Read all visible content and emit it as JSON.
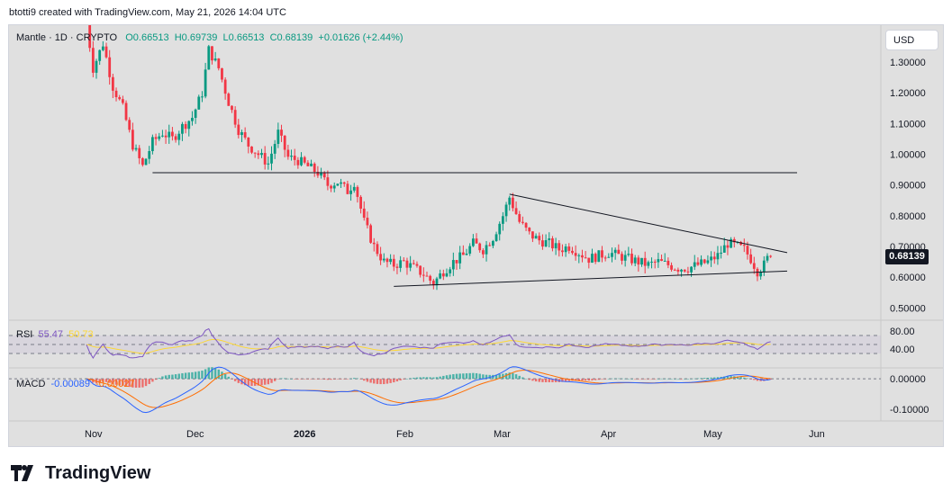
{
  "credit": "btotti9 created with TradingView.com, May 21, 2026 14:04 UTC",
  "legend": {
    "symbol": "Mantle · 1D · CRYPTO",
    "open": "O0.66513",
    "high": "H0.69739",
    "low": "L0.66513",
    "close": "C0.68139",
    "change": "+0.01626 (+2.44%)"
  },
  "currency": "USD",
  "last_price": "0.68139",
  "rsi": {
    "label": "RSI",
    "value": "55.47",
    "ma_value": "50.73"
  },
  "macd": {
    "label": "MACD",
    "macd_value": "-0.00089",
    "signal_value": "-0.00027"
  },
  "footer": {
    "brand": "TradingView"
  },
  "colors": {
    "up": "#089981",
    "down": "#f23645",
    "rsi_line": "#7e57c2",
    "rsi_ma": "#fdd835",
    "macd_line": "#2962ff",
    "signal_line": "#ff6d00",
    "hist_up": "#26a69a",
    "hist_down": "#ef5350",
    "pane_bg": "#e0e0e0"
  },
  "chart_data": {
    "type": "candlestick",
    "price_axis": {
      "ticks": [
        "1.30000",
        "1.20000",
        "1.10000",
        "1.00000",
        "0.90000",
        "0.80000",
        "0.70000",
        "0.60000",
        "0.50000"
      ],
      "tick_values": [
        1.3,
        1.2,
        1.1,
        1.0,
        0.9,
        0.8,
        0.7,
        0.6,
        0.5
      ],
      "range": [
        0.46,
        1.42
      ]
    },
    "time_axis": {
      "labels": [
        "Nov",
        "Dec",
        "2026",
        "Feb",
        "Mar",
        "Apr",
        "May",
        "Jun"
      ],
      "bold": [
        "2026"
      ]
    },
    "close_path": [
      [
        0,
        1.43
      ],
      [
        2,
        1.28
      ],
      [
        5,
        1.36
      ],
      [
        8,
        1.22
      ],
      [
        11,
        1.15
      ],
      [
        14,
        1.03
      ],
      [
        17,
        0.96
      ],
      [
        20,
        1.04
      ],
      [
        23,
        1.07
      ],
      [
        26,
        1.05
      ],
      [
        29,
        1.09
      ],
      [
        32,
        1.12
      ],
      [
        35,
        1.2
      ],
      [
        37,
        1.34
      ],
      [
        40,
        1.28
      ],
      [
        43,
        1.17
      ],
      [
        46,
        1.08
      ],
      [
        49,
        1.03
      ],
      [
        52,
        1.0
      ],
      [
        55,
        0.97
      ],
      [
        58,
        1.07
      ],
      [
        61,
        0.99
      ],
      [
        64,
        0.98
      ],
      [
        67,
        0.96
      ],
      [
        70,
        0.94
      ],
      [
        73,
        0.9
      ],
      [
        76,
        0.91
      ],
      [
        79,
        0.88
      ],
      [
        81,
        0.91
      ],
      [
        84,
        0.78
      ],
      [
        87,
        0.7
      ],
      [
        90,
        0.65
      ],
      [
        93,
        0.64
      ],
      [
        96,
        0.65
      ],
      [
        99,
        0.63
      ],
      [
        102,
        0.61
      ],
      [
        105,
        0.58
      ],
      [
        108,
        0.62
      ],
      [
        111,
        0.65
      ],
      [
        114,
        0.67
      ],
      [
        117,
        0.71
      ],
      [
        120,
        0.69
      ],
      [
        123,
        0.73
      ],
      [
        126,
        0.8
      ],
      [
        128,
        0.86
      ],
      [
        131,
        0.78
      ],
      [
        134,
        0.74
      ],
      [
        137,
        0.72
      ],
      [
        140,
        0.71
      ],
      [
        143,
        0.69
      ],
      [
        146,
        0.7
      ],
      [
        149,
        0.68
      ],
      [
        152,
        0.66
      ],
      [
        155,
        0.67
      ],
      [
        158,
        0.68
      ],
      [
        161,
        0.67
      ],
      [
        164,
        0.66
      ],
      [
        167,
        0.65
      ],
      [
        170,
        0.64
      ],
      [
        173,
        0.65
      ],
      [
        176,
        0.64
      ],
      [
        179,
        0.63
      ],
      [
        182,
        0.63
      ],
      [
        185,
        0.64
      ],
      [
        188,
        0.65
      ],
      [
        191,
        0.67
      ],
      [
        194,
        0.71
      ],
      [
        197,
        0.7
      ],
      [
        199,
        0.69
      ],
      [
        201,
        0.66
      ],
      [
        203,
        0.62
      ],
      [
        205,
        0.64
      ],
      [
        207,
        0.68
      ]
    ],
    "horizontal_line": {
      "price": 0.94,
      "x_start": 20,
      "x_end": 215
    },
    "descending_trendline": {
      "from": [
        128,
        0.87
      ],
      "to": [
        212,
        0.68
      ]
    },
    "support_trendline": {
      "from": [
        93,
        0.57
      ],
      "to": [
        212,
        0.62
      ]
    },
    "rsi_axis": {
      "ticks": [
        "80.00",
        "40.00"
      ],
      "tick_values": [
        80,
        40
      ],
      "range": [
        0,
        100
      ],
      "bands": [
        70,
        50,
        30
      ]
    },
    "macd_axis": {
      "ticks": [
        "0.00000",
        "-0.10000"
      ],
      "tick_values": [
        0,
        -0.1
      ],
      "range": [
        -0.135,
        0.03
      ]
    }
  }
}
